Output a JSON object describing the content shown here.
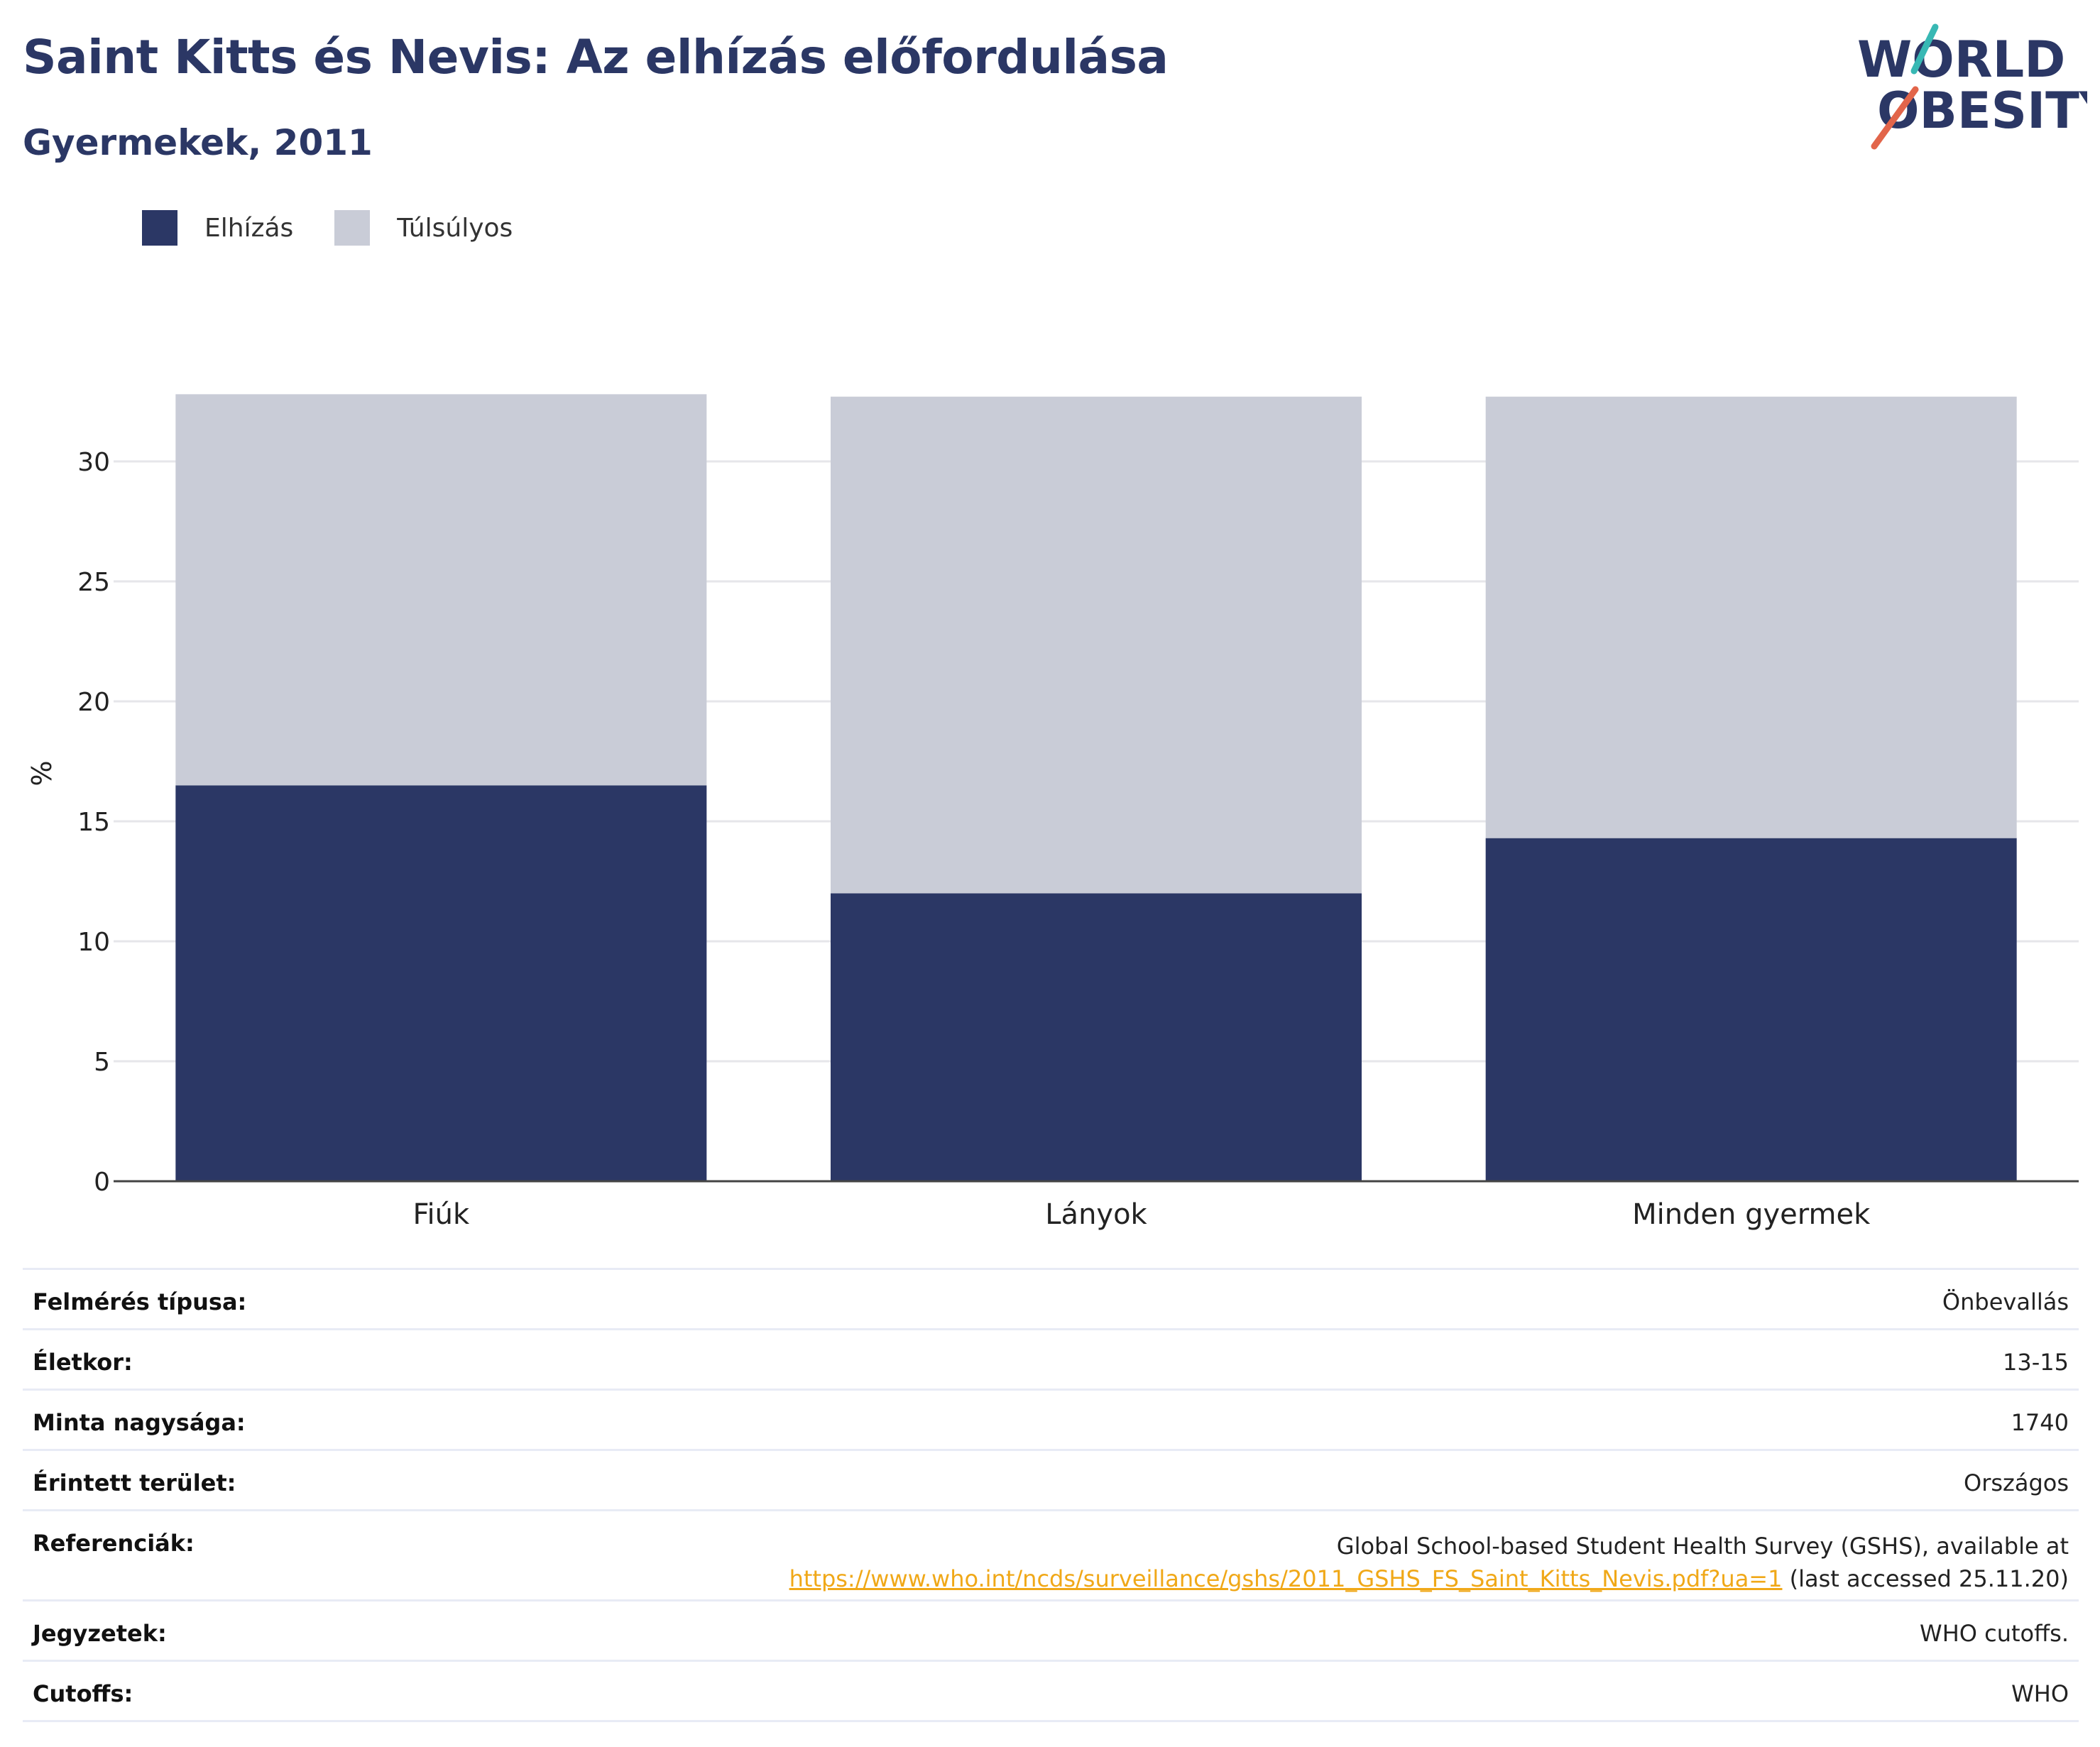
{
  "header": {
    "title": "Saint Kitts és Nevis: Az elhízás előfordulása",
    "subtitle": "Gyermekek, 2011"
  },
  "logo": {
    "line1": "WORLD",
    "line2": "OBESITY"
  },
  "colors": {
    "obesity": "#2b3765",
    "overweight": "#c9ccd7",
    "title": "#2b3765",
    "link": "#f0a818"
  },
  "legend": [
    {
      "label": "Elhízás",
      "color": "#2b3765"
    },
    {
      "label": "Túlsúlyos",
      "color": "#c9ccd7"
    }
  ],
  "chart_data": {
    "type": "bar",
    "stacked": true,
    "categories": [
      "Fiúk",
      "Lányok",
      "Minden gyermek"
    ],
    "series": [
      {
        "name": "Elhízás",
        "values": [
          16.5,
          12.0,
          14.3
        ]
      },
      {
        "name": "Túlsúlyos",
        "values": [
          16.3,
          20.7,
          18.4
        ]
      }
    ],
    "ylabel": "%",
    "yticks": [
      0,
      5,
      10,
      15,
      20,
      25,
      30
    ],
    "ylim": [
      0,
      35
    ],
    "grid": true,
    "legend_position": "top-left"
  },
  "info": {
    "rows": [
      {
        "key": "Felmérés típusa:",
        "value": "Önbevallás"
      },
      {
        "key": "Életkor:",
        "value": "13-15"
      },
      {
        "key": "Minta nagysága:",
        "value": "1740"
      },
      {
        "key": "Érintett terület:",
        "value": "Országos"
      }
    ],
    "references": {
      "key": "Referenciák:",
      "line1": "Global School-based Student Health Survey (GSHS), available at",
      "link": "https://www.who.int/ncds/surveillance/gshs/2011_GSHS_FS_Saint_Kitts_Nevis.pdf?ua=1",
      "suffix": " (last accessed 25.11.20)"
    },
    "notes": {
      "key": "Jegyzetek:",
      "value": "WHO cutoffs."
    },
    "cutoffs": {
      "key": "Cutoffs:",
      "value": "WHO"
    }
  }
}
